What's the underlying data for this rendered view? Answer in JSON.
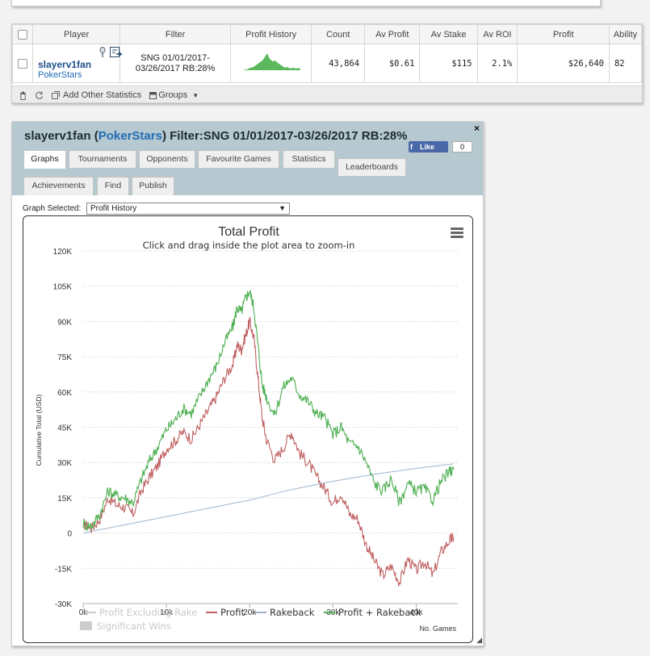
{
  "stats_table": {
    "headers": [
      "Player",
      "Filter",
      "Profit History",
      "Count",
      "Av Profit",
      "Av Stake",
      "Av ROI",
      "Profit",
      "Ability"
    ],
    "row": {
      "player": "slayerv1fan",
      "site": "PokerStars",
      "filter": "SNG 01/01/2017-03/26/2017 RB:28%",
      "count": "43,864",
      "av_profit": "$0.61",
      "av_stake": "$115",
      "av_roi": "2.1%",
      "profit": "$26,640",
      "ability": "82"
    },
    "footer": {
      "add_stats": "Add Other Statistics",
      "groups": "Groups"
    }
  },
  "panel": {
    "player": "slayerv1fan",
    "site": "PokerStars",
    "filter": "Filter:SNG 01/01/2017-03/26/2017 RB:28%",
    "close": "×",
    "fb_like": "Like",
    "fb_count": "0",
    "tabs": [
      "Graphs",
      "Tournaments",
      "Opponents",
      "Favourite Games",
      "Statistics",
      "Leaderboards",
      "Achievements",
      "Find",
      "Publish"
    ],
    "graph_selected_label": "Graph Selected:",
    "graph_selected_value": "Profit History"
  },
  "colors": {
    "profit": "#c06060",
    "profit_rakeback": "#4caf50",
    "rakeback": "#9fb4cc",
    "sparkline": "#5cb85c",
    "accent_site": "#1e6cb3"
  },
  "chart_data": {
    "type": "line",
    "title": "Total Profit",
    "subtitle": "Click and drag inside the plot area to zoom-in",
    "ylabel": "Cumulative Total (USD)",
    "xlabel": "No. Games",
    "ylim": [
      -30000,
      120000
    ],
    "xlim": [
      0,
      45000
    ],
    "y_ticks": [
      "120K",
      "105K",
      "90K",
      "75K",
      "60K",
      "45K",
      "30K",
      "15K",
      "0",
      "-15K",
      "-30K"
    ],
    "x_ticks": [
      "0k",
      "10k",
      "20k",
      "30k",
      "40k"
    ],
    "grid": "horizontal dotted",
    "legend": [
      "Profit Excluding Rake",
      "Profit",
      "Rakeback",
      "Profit + Rakeback",
      "Significant Wins"
    ],
    "series": [
      {
        "name": "Profit",
        "x": [
          0,
          1000,
          2000,
          3000,
          4000,
          5000,
          6000,
          7000,
          8000,
          9000,
          10000,
          11000,
          12000,
          13000,
          14000,
          15000,
          16000,
          17000,
          18000,
          18500,
          19000,
          19500,
          20000,
          20500,
          21000,
          21500,
          22000,
          23000,
          24000,
          25000,
          26000,
          27000,
          28000,
          29000,
          30000,
          31000,
          32000,
          33000,
          34000,
          35000,
          36000,
          37000,
          38000,
          39000,
          40000,
          41000,
          42000,
          43000,
          44000,
          44500
        ],
        "values": [
          4000,
          2000,
          6000,
          15000,
          12000,
          11000,
          8000,
          18000,
          24000,
          29000,
          36000,
          39000,
          43000,
          40000,
          46000,
          52000,
          58000,
          66000,
          72000,
          80000,
          78000,
          84000,
          90000,
          83000,
          66000,
          49000,
          40000,
          31000,
          36000,
          43000,
          34000,
          30000,
          24000,
          19000,
          13000,
          17000,
          8000,
          6000,
          -5000,
          -12000,
          -18000,
          -14000,
          -21000,
          -11000,
          -16000,
          -12000,
          -18000,
          -8000,
          -3000,
          -2000
        ]
      },
      {
        "name": "Profit + Rakeback",
        "x": [
          0,
          1000,
          2000,
          3000,
          4000,
          5000,
          6000,
          7000,
          8000,
          9000,
          10000,
          11000,
          12000,
          13000,
          14000,
          15000,
          16000,
          17000,
          18000,
          18500,
          19000,
          19500,
          20000,
          20500,
          21000,
          21500,
          22000,
          23000,
          24000,
          25000,
          26000,
          27000,
          28000,
          29000,
          30000,
          31000,
          32000,
          33000,
          34000,
          35000,
          36000,
          37000,
          38000,
          39000,
          40000,
          41000,
          42000,
          43000,
          44000,
          44500
        ],
        "values": [
          4000,
          3000,
          8000,
          18000,
          16000,
          15000,
          13000,
          23000,
          31000,
          37000,
          44000,
          48000,
          53000,
          51000,
          58000,
          65000,
          71000,
          81000,
          88000,
          96000,
          94000,
          100000,
          103000,
          96000,
          80000,
          63000,
          58000,
          50000,
          62000,
          66000,
          59000,
          56000,
          51000,
          49000,
          42000,
          45000,
          38000,
          37000,
          30000,
          21000,
          18000,
          23000,
          13000,
          21000,
          18000,
          19000,
          14000,
          22000,
          26000,
          27000
        ]
      },
      {
        "name": "Rakeback",
        "x": [
          0,
          5000,
          10000,
          15000,
          20000,
          25000,
          30000,
          35000,
          40000,
          44500
        ],
        "values": [
          0,
          3500,
          7000,
          10500,
          14000,
          18500,
          22000,
          25000,
          27500,
          29500
        ]
      }
    ]
  }
}
